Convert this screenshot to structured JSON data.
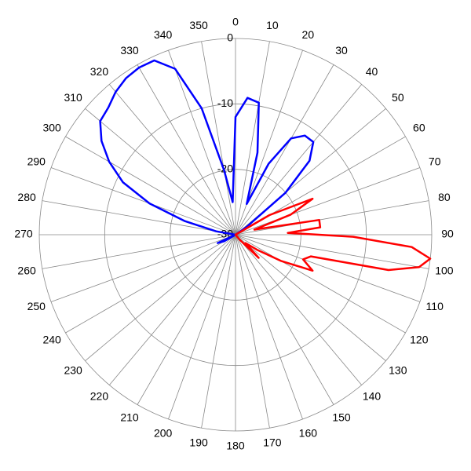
{
  "chart_data": {
    "type": "polar",
    "rlim": [
      -30,
      0
    ],
    "rticks": [
      -30,
      -20,
      -10,
      0
    ],
    "thetaticks": [
      0,
      10,
      20,
      30,
      40,
      50,
      60,
      70,
      80,
      90,
      100,
      110,
      120,
      130,
      140,
      150,
      160,
      170,
      180,
      190,
      200,
      210,
      220,
      230,
      240,
      250,
      260,
      270,
      280,
      290,
      300,
      310,
      320,
      330,
      340,
      350
    ],
    "grid": true,
    "series": [
      {
        "color": "#0000ff",
        "theta": [
          0,
          5,
          10,
          15,
          20,
          25,
          30,
          35,
          40,
          45,
          50,
          55,
          60,
          90,
          120,
          150,
          180,
          210,
          240,
          245,
          250,
          270,
          280,
          285,
          290,
          295,
          300,
          305,
          310,
          315,
          320,
          325,
          330,
          335,
          340,
          345,
          350,
          355
        ],
        "values": [
          -12,
          -9,
          -9.5,
          -17,
          -25,
          -18,
          -13,
          -11.5,
          -11.5,
          -14,
          -20,
          -28,
          -30,
          -30,
          -30,
          -30,
          -30,
          -30,
          -28,
          -27,
          -30,
          -30,
          -27,
          -22,
          -16,
          -11,
          -7.7,
          -5,
          -3,
          -2.5,
          -1.5,
          -0.8,
          -0.5,
          -0.6,
          -3,
          -10,
          -20,
          -25
        ]
      },
      {
        "color": "#ff0000",
        "theta": [
          0,
          55,
          60,
          65,
          70,
          75,
          80,
          85,
          88,
          91,
          94,
          97,
          100,
          103,
          106,
          110,
          115,
          120,
          125,
          130,
          135,
          140,
          150,
          180,
          270
        ],
        "values": [
          -30,
          -30,
          -24,
          -17,
          -21,
          -27,
          -17,
          -17,
          -22,
          -12,
          -3,
          0,
          -1.5,
          -6,
          -18,
          -19,
          -17,
          -22,
          -26,
          -28,
          -25,
          -29,
          -30,
          -30,
          -30
        ]
      }
    ]
  }
}
